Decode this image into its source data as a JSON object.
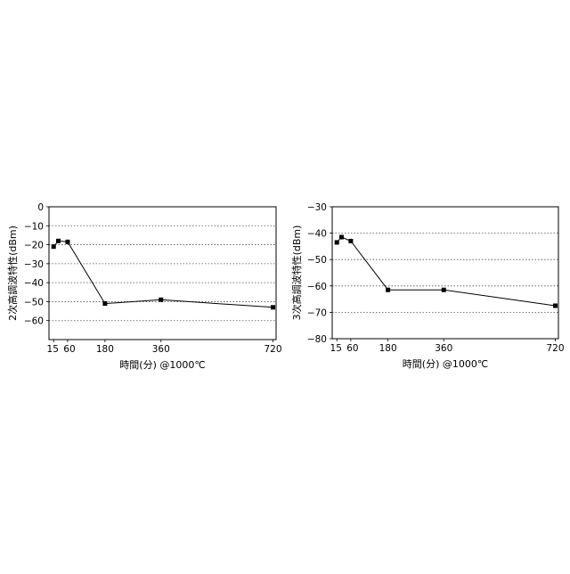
{
  "chart_data": [
    {
      "type": "line",
      "ylabel": "2次高調波特性(dBm)",
      "xlabel": "時間(分) @1000℃",
      "ylim": [
        -70,
        0
      ],
      "yticks": [
        0,
        -10,
        -20,
        -30,
        -40,
        -50,
        -60
      ],
      "xticks": [
        15,
        60,
        180,
        360,
        720
      ],
      "xtick_labels": [
        "15",
        "60",
        "180",
        "360",
        "720"
      ],
      "grid": true,
      "series": [
        {
          "x": [
            15,
            30,
            60,
            180,
            360,
            720
          ],
          "y": [
            -21,
            -18,
            -18.5,
            -51,
            -49,
            -53
          ]
        }
      ]
    },
    {
      "type": "line",
      "ylabel": "3次高調波特性(dBm)",
      "xlabel": "時間(分) @1000℃",
      "ylim": [
        -80,
        -30
      ],
      "yticks": [
        -30,
        -40,
        -50,
        -60,
        -70,
        -80
      ],
      "xticks": [
        15,
        60,
        180,
        360,
        720
      ],
      "xtick_labels": [
        "15",
        "60",
        "180",
        "360",
        "720"
      ],
      "grid": true,
      "series": [
        {
          "x": [
            15,
            30,
            60,
            180,
            360,
            720
          ],
          "y": [
            -43.5,
            -41.5,
            -43,
            -61.5,
            -61.5,
            -67.5
          ]
        }
      ]
    }
  ]
}
